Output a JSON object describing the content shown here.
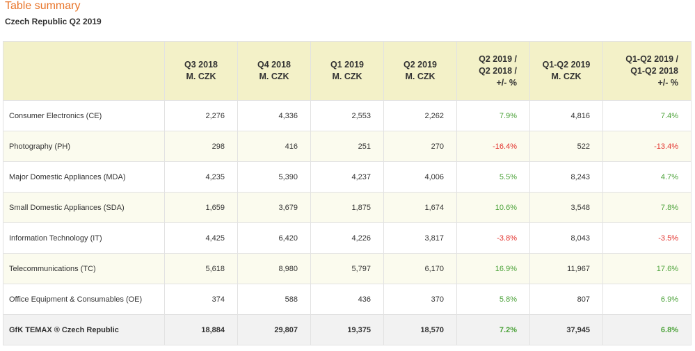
{
  "header": {
    "title": "Table summary",
    "subtitle": "Czech Republic Q2 2019"
  },
  "table": {
    "columns": [
      "",
      "Q3 2018\nM. CZK",
      "Q4 2018\nM. CZK",
      "Q1 2019\nM. CZK",
      "Q2 2019\nM. CZK",
      "Q2 2019 /\nQ2 2018 /\n+/- %",
      "Q1-Q2 2019\nM. CZK",
      "Q1-Q2 2019 /\nQ1-Q2 2018\n+/- %"
    ],
    "rows": [
      {
        "cells": [
          "Consumer Electronics (CE)",
          "2,276",
          "4,336",
          "2,553",
          "2,262",
          "7.9%",
          "4,816",
          "7.4%"
        ]
      },
      {
        "cells": [
          "Photography (PH)",
          "298",
          "416",
          "251",
          "270",
          "-16.4%",
          "522",
          "-13.4%"
        ]
      },
      {
        "cells": [
          "Major Domestic Appliances (MDA)",
          "4,235",
          "5,390",
          "4,237",
          "4,006",
          "5.5%",
          "8,243",
          "4.7%"
        ]
      },
      {
        "cells": [
          "Small Domestic Appliances (SDA)",
          "1,659",
          "3,679",
          "1,875",
          "1,674",
          "10.6%",
          "3,548",
          "7.8%"
        ]
      },
      {
        "cells": [
          "Information Technology (IT)",
          "4,425",
          "6,420",
          "4,226",
          "3,817",
          "-3.8%",
          "8,043",
          "-3.5%"
        ]
      },
      {
        "cells": [
          "Telecommunications (TC)",
          "5,618",
          "8,980",
          "5,797",
          "6,170",
          "16.9%",
          "11,967",
          "17.6%"
        ]
      },
      {
        "cells": [
          "Office Equipment & Consumables (OE)",
          "374",
          "588",
          "436",
          "370",
          "5.8%",
          "807",
          "6.9%"
        ]
      }
    ],
    "total": {
      "cells": [
        "GfK TEMAX ® Czech Republic",
        "18,884",
        "29,807",
        "19,375",
        "18,570",
        "7.2%",
        "37,945",
        "6.8%"
      ]
    }
  },
  "colors": {
    "title": "#e8752a",
    "header_bg": "#f3f1c8",
    "stripe_bg": "#fbfbee",
    "total_bg": "#f2f2f2",
    "positive": "#4da33b",
    "negative": "#e3342f"
  }
}
